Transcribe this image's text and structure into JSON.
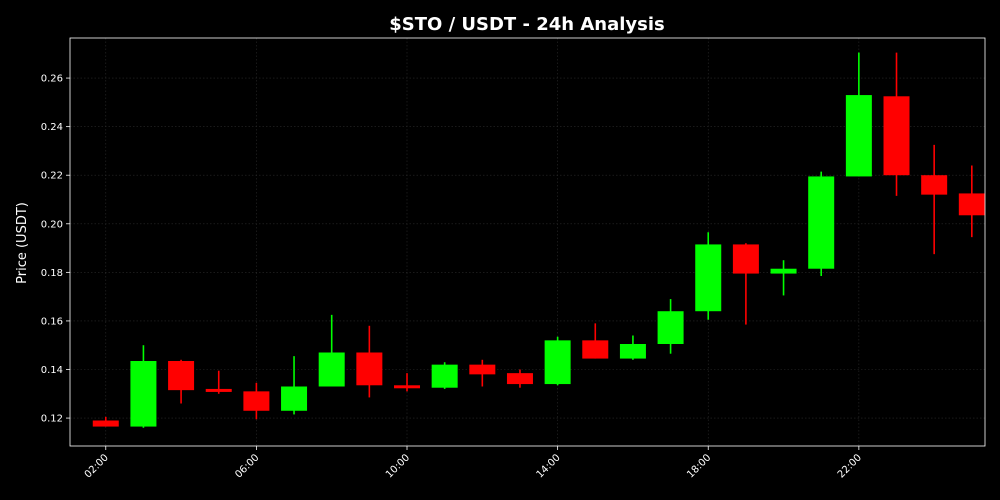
{
  "chart_data": {
    "type": "candlestick",
    "title": "$STO / USDT - 24h Analysis",
    "xlabel": "",
    "ylabel": "Price (USDT)",
    "ylim": [
      0.1085,
      0.2765
    ],
    "grid": true,
    "y_ticks": [
      "0.12",
      "0.14",
      "0.16",
      "0.18",
      "0.20",
      "0.22",
      "0.24",
      "0.26"
    ],
    "x_ticks": [
      "02:00",
      "06:00",
      "10:00",
      "14:00",
      "18:00",
      "22:00"
    ],
    "x_tick_hours": [
      2,
      6,
      10,
      14,
      18,
      22
    ],
    "x_range_hours": [
      1.05,
      25.35
    ],
    "up_color": "#00ff00",
    "down_color": "#ff0000",
    "candles": [
      {
        "hour": 2,
        "open": 0.119,
        "high": 0.1205,
        "low": 0.1165,
        "close": 0.1165
      },
      {
        "hour": 3,
        "open": 0.1165,
        "high": 0.15,
        "low": 0.116,
        "close": 0.1435
      },
      {
        "hour": 4,
        "open": 0.1435,
        "high": 0.144,
        "low": 0.126,
        "close": 0.1315
      },
      {
        "hour": 5,
        "open": 0.132,
        "high": 0.1395,
        "low": 0.13,
        "close": 0.131
      },
      {
        "hour": 6,
        "open": 0.131,
        "high": 0.1345,
        "low": 0.1195,
        "close": 0.123
      },
      {
        "hour": 7,
        "open": 0.123,
        "high": 0.1455,
        "low": 0.1215,
        "close": 0.133
      },
      {
        "hour": 8,
        "open": 0.133,
        "high": 0.1625,
        "low": 0.133,
        "close": 0.147
      },
      {
        "hour": 9,
        "open": 0.147,
        "high": 0.158,
        "low": 0.1285,
        "close": 0.1335
      },
      {
        "hour": 10,
        "open": 0.1335,
        "high": 0.1385,
        "low": 0.131,
        "close": 0.1325
      },
      {
        "hour": 11,
        "open": 0.1325,
        "high": 0.143,
        "low": 0.132,
        "close": 0.142
      },
      {
        "hour": 12,
        "open": 0.142,
        "high": 0.144,
        "low": 0.133,
        "close": 0.138
      },
      {
        "hour": 13,
        "open": 0.1385,
        "high": 0.14,
        "low": 0.1325,
        "close": 0.134
      },
      {
        "hour": 14,
        "open": 0.134,
        "high": 0.1535,
        "low": 0.1335,
        "close": 0.152
      },
      {
        "hour": 15,
        "open": 0.152,
        "high": 0.159,
        "low": 0.1445,
        "close": 0.1445
      },
      {
        "hour": 16,
        "open": 0.1445,
        "high": 0.154,
        "low": 0.144,
        "close": 0.1505
      },
      {
        "hour": 17,
        "open": 0.1505,
        "high": 0.169,
        "low": 0.1465,
        "close": 0.164
      },
      {
        "hour": 18,
        "open": 0.164,
        "high": 0.1965,
        "low": 0.1605,
        "close": 0.1915
      },
      {
        "hour": 19,
        "open": 0.1915,
        "high": 0.192,
        "low": 0.1585,
        "close": 0.1795
      },
      {
        "hour": 20,
        "open": 0.1795,
        "high": 0.185,
        "low": 0.1705,
        "close": 0.1815
      },
      {
        "hour": 21,
        "open": 0.1815,
        "high": 0.2215,
        "low": 0.1785,
        "close": 0.2195
      },
      {
        "hour": 22,
        "open": 0.2195,
        "high": 0.2705,
        "low": 0.2195,
        "close": 0.253
      },
      {
        "hour": 23,
        "open": 0.2525,
        "high": 0.2705,
        "low": 0.2115,
        "close": 0.22
      },
      {
        "hour": 24,
        "open": 0.22,
        "high": 0.2325,
        "low": 0.1875,
        "close": 0.212
      },
      {
        "hour": 25,
        "open": 0.2125,
        "high": 0.224,
        "low": 0.1945,
        "close": 0.2035
      }
    ]
  }
}
